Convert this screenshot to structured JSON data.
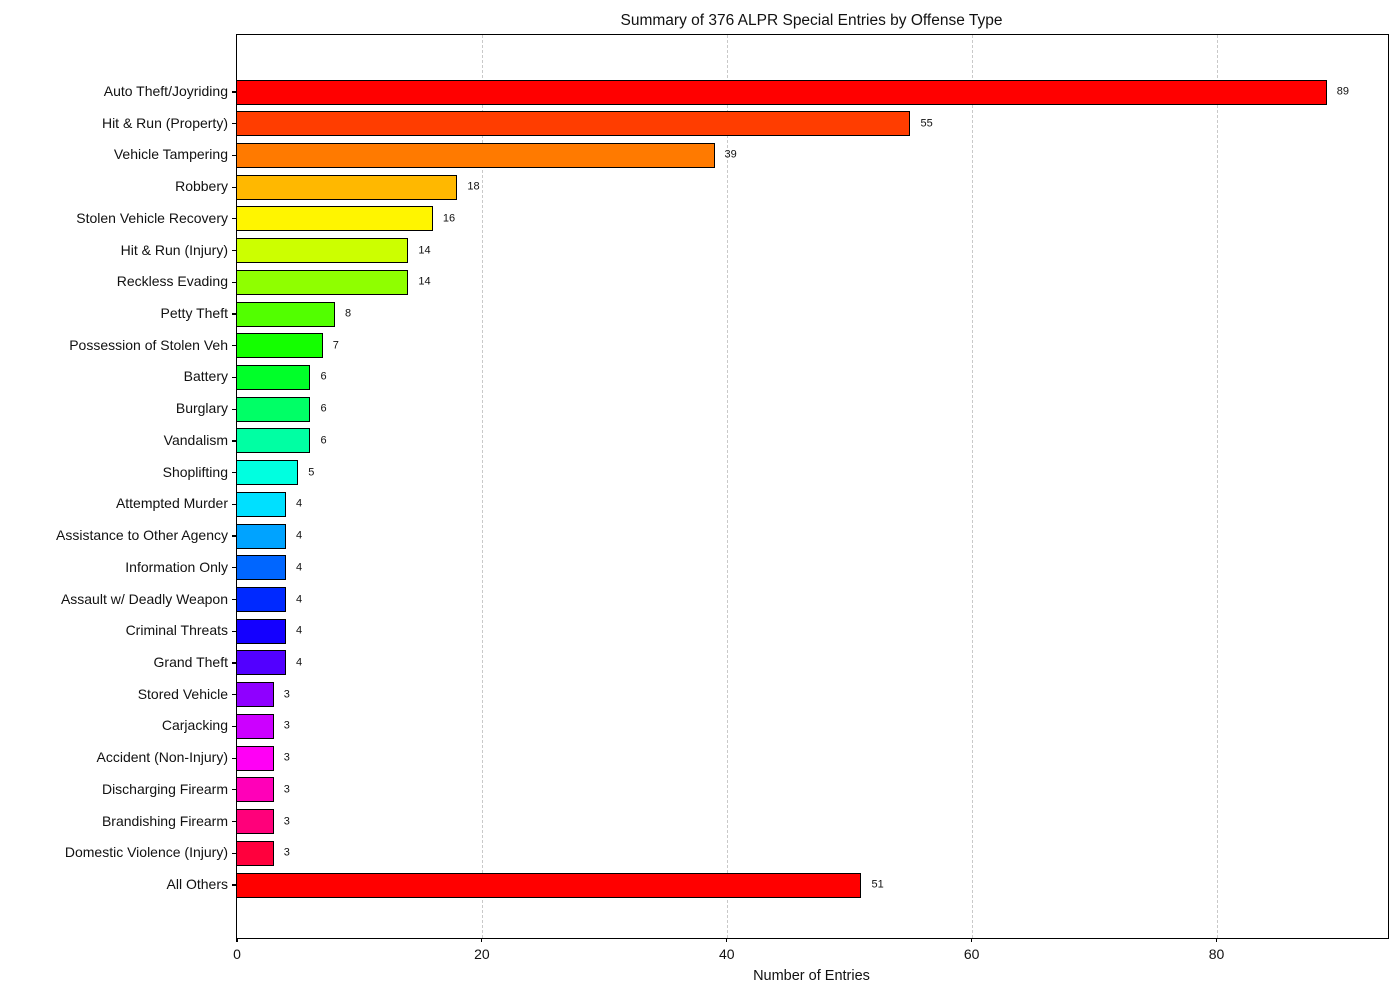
{
  "chart_data": {
    "type": "bar",
    "orientation": "horizontal",
    "title": "Summary of 376 ALPR Special Entries by Offense Type",
    "xlabel": "Number of Entries",
    "ylabel": "",
    "total_entries": 376,
    "xlim": [
      0,
      94
    ],
    "xticks": [
      0,
      20,
      40,
      60,
      80
    ],
    "grid": "vertical-dashed",
    "legend": "none",
    "categories": [
      "Auto Theft/Joyriding",
      "Hit & Run (Property)",
      "Vehicle Tampering",
      "Robbery",
      "Stolen Vehicle Recovery",
      "Hit & Run (Injury)",
      "Reckless Evading",
      "Petty Theft",
      "Possession of Stolen Veh",
      "Battery",
      "Burglary",
      "Vandalism",
      "Shoplifting",
      "Attempted Murder",
      "Assistance to Other Agency",
      "Information Only",
      "Assault w/ Deadly Weapon",
      "Criminal Threats",
      "Grand Theft",
      "Stored Vehicle",
      "Carjacking",
      "Accident (Non-Injury)",
      "Discharging Firearm",
      "Brandishing Firearm",
      "Domestic Violence (Injury)",
      "All Others"
    ],
    "values": [
      89,
      55,
      39,
      18,
      16,
      14,
      14,
      8,
      7,
      6,
      6,
      6,
      5,
      4,
      4,
      4,
      4,
      4,
      4,
      3,
      3,
      3,
      3,
      3,
      3,
      51
    ],
    "colors": [
      "#FF0000",
      "#FF3D00",
      "#FF7A00",
      "#FFB800",
      "#FFF500",
      "#CCFF00",
      "#8FFF00",
      "#52FF00",
      "#14FF00",
      "#00FF29",
      "#00FF66",
      "#00FFA3",
      "#00FFE0",
      "#00E0FF",
      "#00A3FF",
      "#0066FF",
      "#0029FF",
      "#1400FF",
      "#5200FF",
      "#8F00FF",
      "#CC00FF",
      "#FF00F5",
      "#FF00B8",
      "#FF007A",
      "#FF003D",
      "#FF0000"
    ],
    "gridline_color": "#c9c9c9"
  }
}
